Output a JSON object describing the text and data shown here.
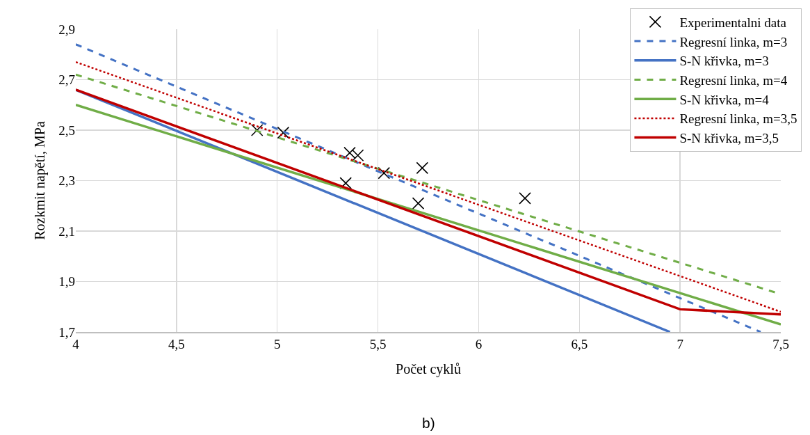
{
  "chart_data": {
    "type": "line",
    "xlabel": "Počet cyklů",
    "ylabel": "Rozkmit napětí, MPa",
    "annotations": [
      "b)"
    ],
    "xlim": [
      4,
      7.5
    ],
    "xticks": [
      4,
      {
        "value": 4.5,
        "label": "4,5"
      },
      5,
      {
        "value": 5.5,
        "label": "5,5"
      },
      6,
      {
        "value": 6.5,
        "label": "6,5"
      },
      7,
      {
        "value": 7.5,
        "label": "7,5"
      }
    ],
    "ylim": [
      1.7,
      2.9
    ],
    "yticks": [
      {
        "value": 1.7,
        "label": "1,7"
      },
      {
        "value": 1.9,
        "label": "1,9"
      },
      {
        "value": 2.1,
        "label": "2,1"
      },
      {
        "value": 2.3,
        "label": "2,3"
      },
      {
        "value": 2.5,
        "label": "2,5"
      },
      {
        "value": 2.7,
        "label": "2,7"
      },
      {
        "value": 2.9,
        "label": "2,9"
      }
    ],
    "grid": true,
    "legend": "top right",
    "series": [
      {
        "name": "Experimentalni data",
        "type": "scatter",
        "marker": "cross",
        "color": "#000000",
        "x": [
          4.9,
          5.03,
          5.36,
          5.4,
          5.34,
          5.53,
          5.72,
          5.7,
          6.23
        ],
        "values": [
          2.5,
          2.49,
          2.41,
          2.4,
          2.29,
          2.33,
          2.35,
          2.21,
          2.23
        ]
      },
      {
        "name": "Regresní linka, m=3",
        "type": "line",
        "line_style": "dashed",
        "color": "#4472c4",
        "x": [
          4,
          7.4
        ],
        "values": [
          2.84,
          1.7
        ]
      },
      {
        "name": "S-N křivka, m=3",
        "type": "line",
        "line_style": "solid",
        "color": "#4472c4",
        "x": [
          4,
          6.95
        ],
        "values": [
          2.66,
          1.7
        ]
      },
      {
        "name": "Regresní linka, m=4",
        "type": "line",
        "line_style": "dashed",
        "color": "#70ad47",
        "x": [
          4,
          7.5
        ],
        "values": [
          2.72,
          1.85
        ]
      },
      {
        "name": "S-N křivka, m=4",
        "type": "line",
        "line_style": "solid",
        "color": "#70ad47",
        "x": [
          4,
          7.5
        ],
        "values": [
          2.6,
          1.73
        ]
      },
      {
        "name": "Regresní linka, m=3,5",
        "type": "line",
        "line_style": "dotted",
        "color": "#c00000",
        "x": [
          4,
          7.5
        ],
        "values": [
          2.77,
          1.78
        ]
      },
      {
        "name": "S-N křivka, m=3,5",
        "type": "line",
        "line_style": "solid",
        "color": "#c00000",
        "x": [
          4,
          7,
          7.5
        ],
        "values": [
          2.66,
          1.79,
          1.77
        ]
      }
    ]
  }
}
